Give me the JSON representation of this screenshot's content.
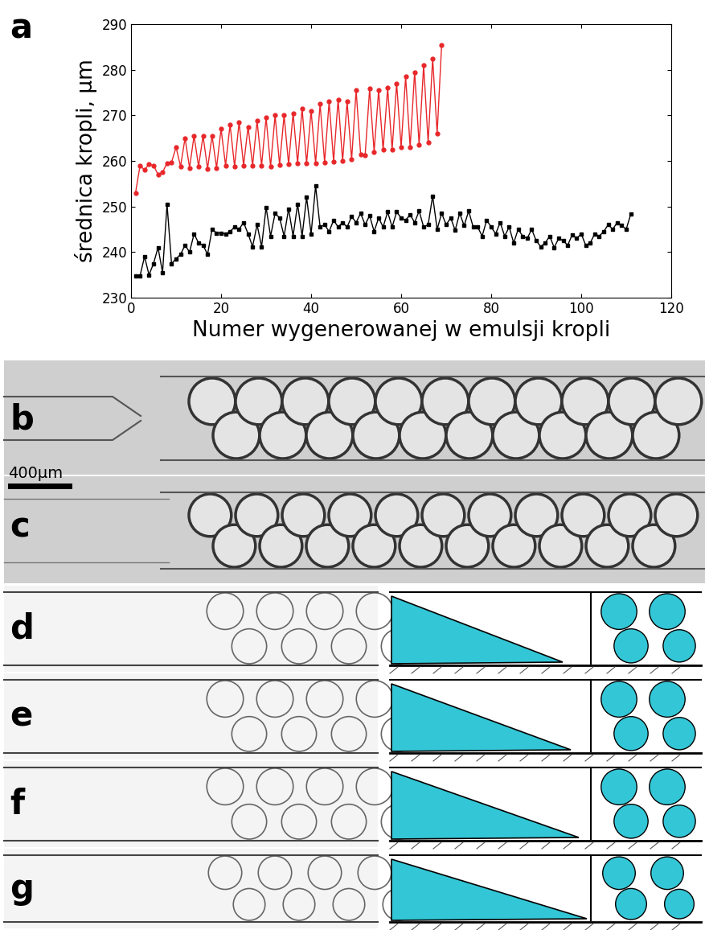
{
  "chart_data": {
    "type": "line",
    "xlabel": "Numer wygenerowanej w emulsji kropli",
    "ylabel": "średnica kropli, µm",
    "xlim": [
      0,
      120
    ],
    "xticks": [
      0,
      20,
      40,
      60,
      80,
      100,
      120
    ],
    "ylim": [
      230,
      290
    ],
    "yticks": [
      230,
      240,
      250,
      260,
      270,
      280,
      290
    ],
    "grid": false,
    "series": [
      {
        "color": "#e8272a",
        "marker": "o",
        "line_style": "solid",
        "x": [
          1,
          2,
          3,
          4,
          5,
          6,
          7,
          8,
          9,
          10,
          11,
          12,
          13,
          14,
          15,
          16,
          17,
          18,
          19,
          20,
          21,
          22,
          23,
          24,
          25,
          26,
          27,
          28,
          29,
          30,
          31,
          32,
          33,
          34,
          35,
          36,
          37,
          38,
          39,
          40,
          41,
          42,
          43,
          44,
          45,
          46,
          47,
          48,
          49,
          50,
          51,
          52,
          53,
          54,
          55,
          56,
          57,
          58,
          59,
          60,
          61,
          62,
          63,
          64,
          65,
          66,
          67,
          68,
          69
        ],
        "values": [
          253,
          259,
          258,
          259.3,
          259,
          257,
          257.5,
          259.5,
          259.7,
          263,
          258.8,
          265,
          258.5,
          265.5,
          258.8,
          265.5,
          258.3,
          265.5,
          258.5,
          267,
          259,
          268,
          258.8,
          268.5,
          259,
          267.5,
          259,
          268.8,
          259,
          269.5,
          258.8,
          270,
          259.2,
          270,
          259.3,
          270.5,
          259.5,
          271.5,
          259.5,
          271,
          259.5,
          272.5,
          259.7,
          273,
          259.9,
          273.5,
          260,
          273,
          260.3,
          275.5,
          261.5,
          261.2,
          275.8,
          262,
          275.5,
          262.4,
          276,
          262.5,
          277,
          263,
          278.5,
          263,
          279.5,
          263.5,
          281,
          264,
          282.5,
          266,
          285.5
        ]
      },
      {
        "color": "#000000",
        "marker": "s",
        "line_style": "solid",
        "x": [
          1,
          2,
          3,
          4,
          5,
          6,
          7,
          8,
          9,
          10,
          11,
          12,
          13,
          14,
          15,
          16,
          17,
          18,
          19,
          20,
          21,
          22,
          23,
          24,
          25,
          26,
          27,
          28,
          29,
          30,
          31,
          32,
          33,
          34,
          35,
          36,
          37,
          38,
          39,
          40,
          41,
          42,
          43,
          44,
          45,
          46,
          47,
          48,
          49,
          50,
          51,
          52,
          53,
          54,
          55,
          56,
          57,
          58,
          59,
          60,
          61,
          62,
          63,
          64,
          65,
          66,
          67,
          68,
          69,
          70,
          71,
          72,
          73,
          74,
          75,
          76,
          77,
          78,
          79,
          80,
          81,
          82,
          83,
          84,
          85,
          86,
          87,
          88,
          89,
          90,
          91,
          92,
          93,
          94,
          95,
          96,
          97,
          98,
          99,
          100,
          101,
          102,
          103,
          104,
          105,
          106,
          107,
          108,
          109,
          110,
          111
        ],
        "values": [
          234.8,
          234.8,
          239,
          235,
          237.5,
          241,
          235.5,
          250.5,
          237.5,
          238.5,
          239.5,
          241.5,
          240,
          244,
          242,
          241.5,
          239.5,
          245,
          244.2,
          244.2,
          244,
          244.5,
          245.5,
          245,
          246.5,
          244,
          241.2,
          246,
          241.2,
          249.8,
          243.5,
          248.5,
          247.5,
          243.5,
          249.5,
          243.5,
          250.5,
          243.5,
          252,
          244,
          254.5,
          245.5,
          246,
          244.5,
          247,
          245.5,
          246.5,
          245.5,
          247.8,
          246.5,
          248.5,
          246,
          248,
          244.5,
          247.5,
          245.5,
          248.8,
          245.5,
          248.8,
          247.5,
          247,
          248.2,
          246.5,
          249,
          245.5,
          246,
          252.3,
          245,
          248.5,
          246,
          247.5,
          244.8,
          248.5,
          245.8,
          249,
          245.5,
          245.5,
          243.5,
          247,
          245.5,
          244,
          246.5,
          243.5,
          245.5,
          242,
          245,
          243.5,
          243,
          245,
          242.5,
          241.2,
          242,
          243.5,
          241,
          243,
          242.5,
          241.5,
          243.8,
          243,
          244,
          241.5,
          242,
          244,
          243.5,
          244.5,
          246,
          245,
          246.5,
          245.8,
          245,
          248.3
        ]
      }
    ]
  },
  "figure": {
    "panel_labels": [
      "a",
      "b",
      "c",
      "d",
      "e",
      "f",
      "g"
    ],
    "scale_bar": "400µm"
  }
}
